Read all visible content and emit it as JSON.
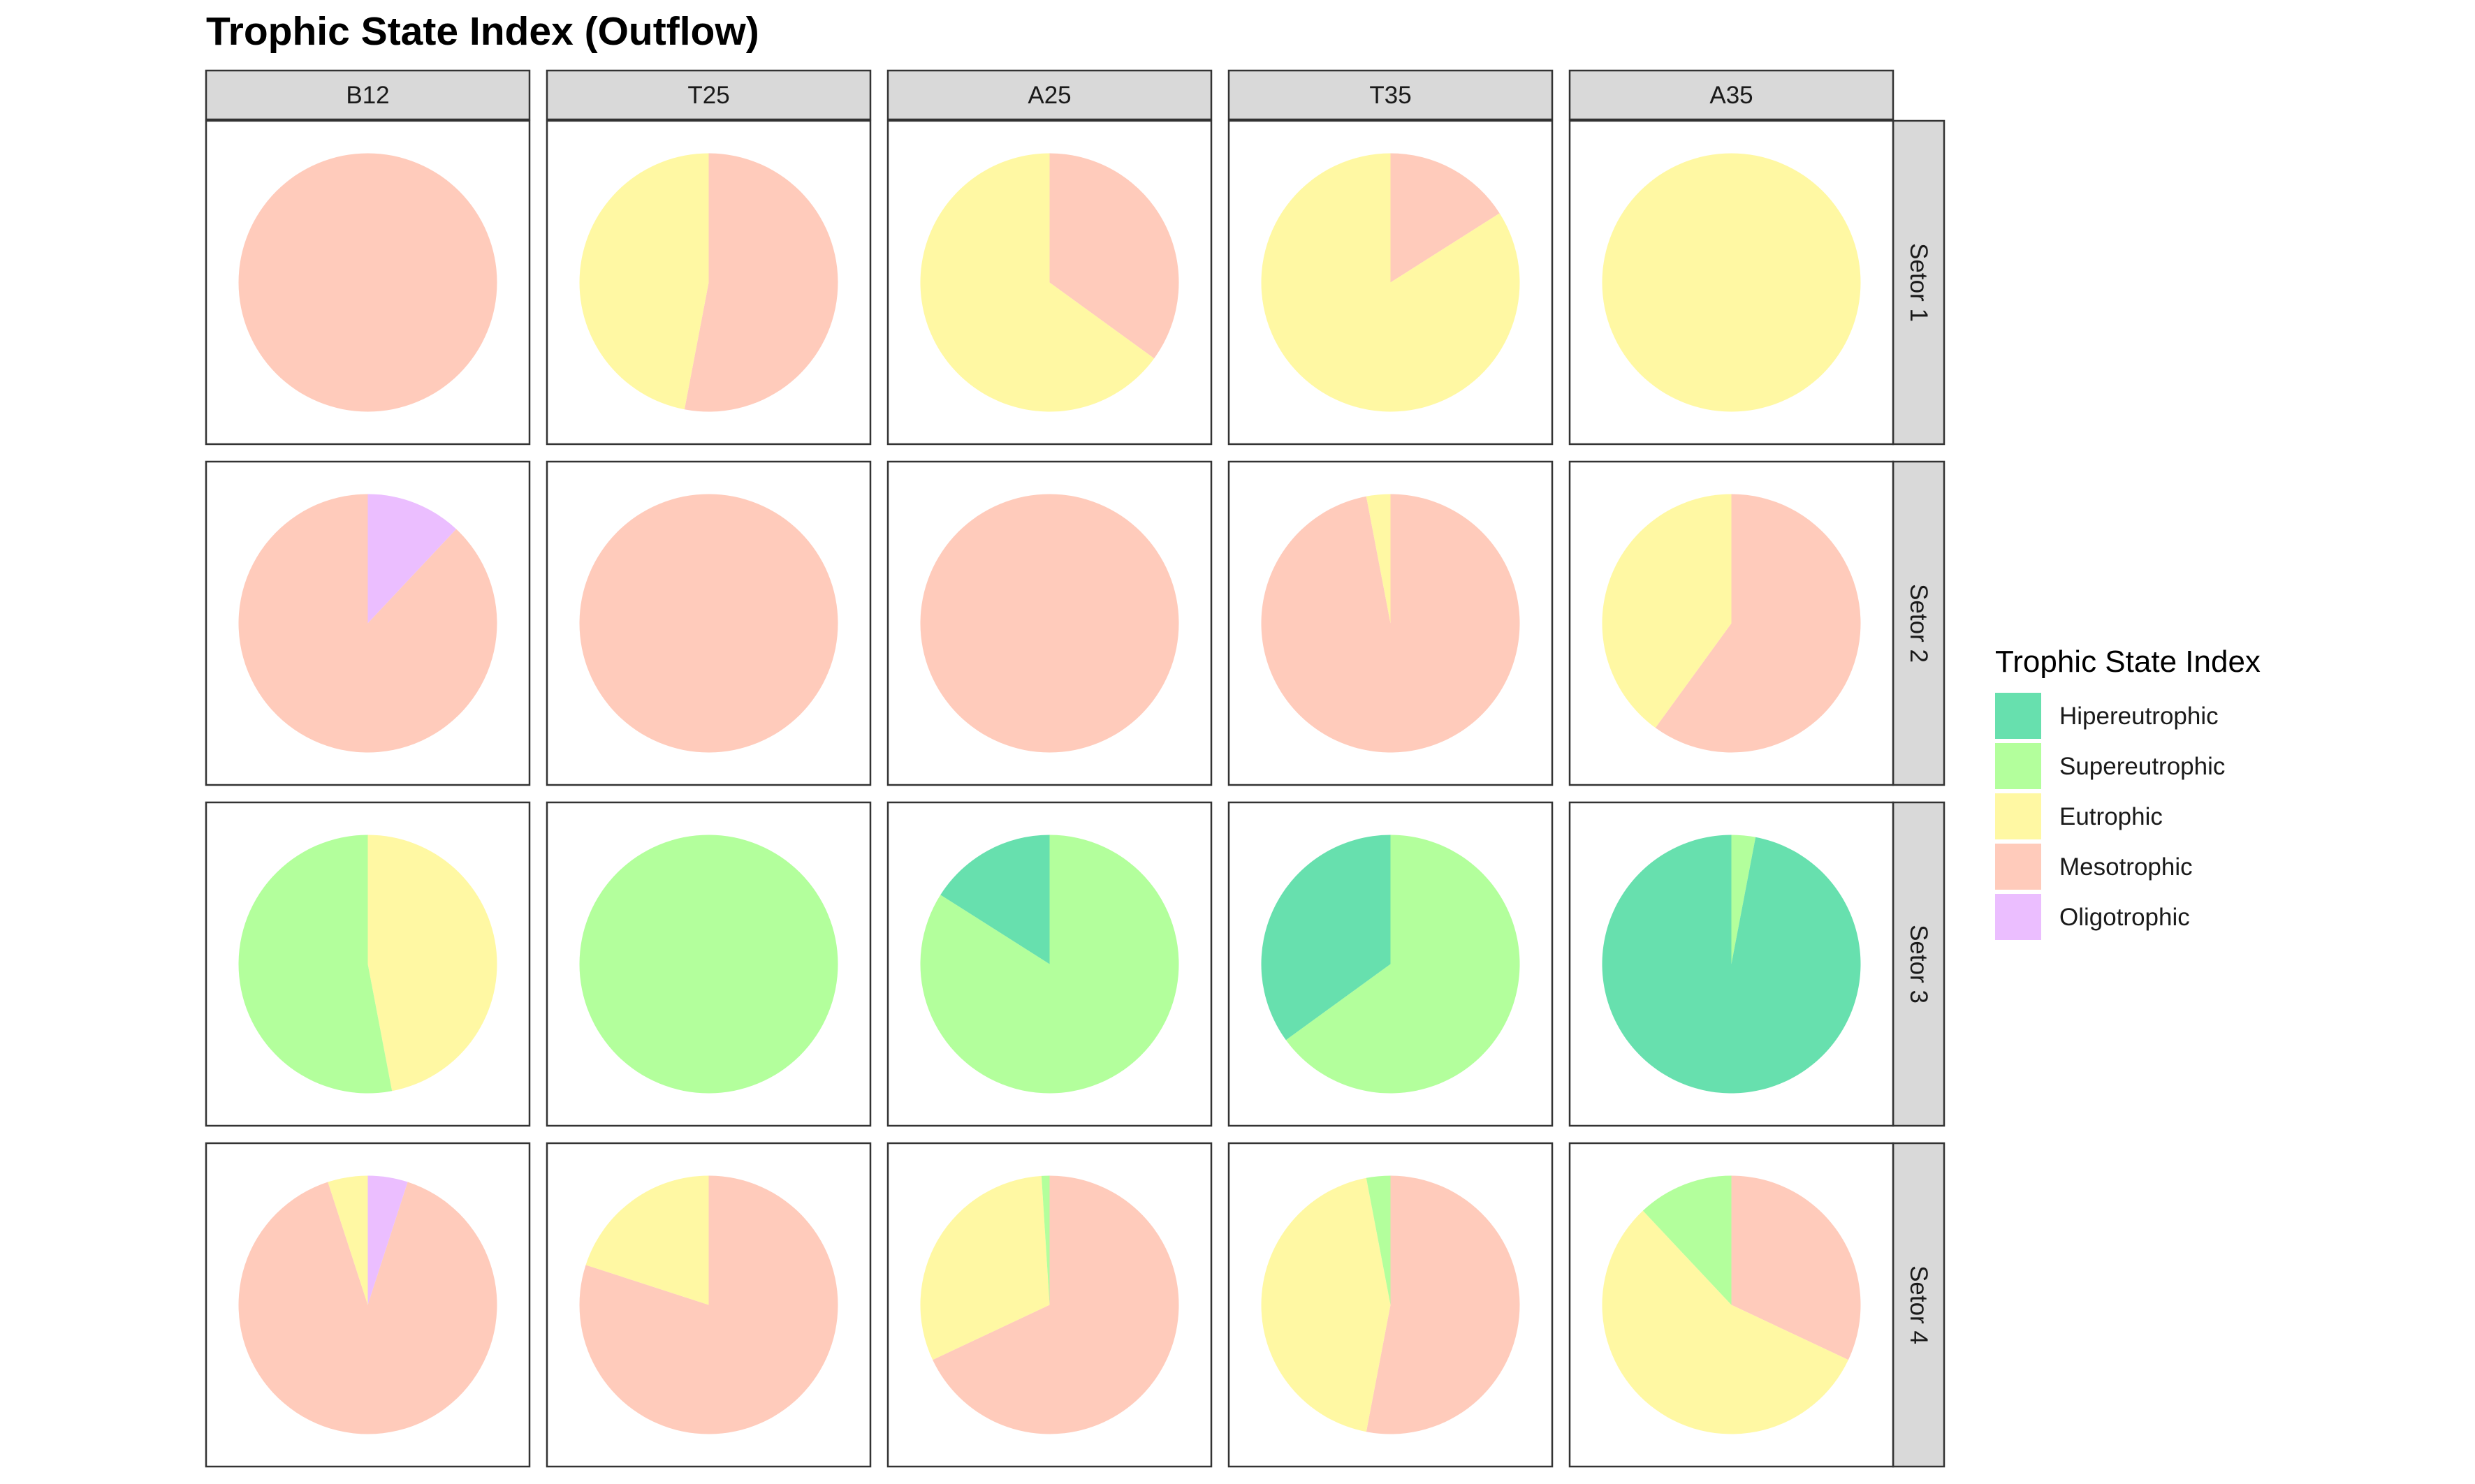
{
  "chart_data": {
    "type": "pie",
    "title": "Trophic State Index (Outflow)",
    "column_facets": [
      "B12",
      "T25",
      "A25",
      "T35",
      "A35"
    ],
    "row_facets": [
      "Setor 1",
      "Setor 2",
      "Setor 3",
      "Setor 4"
    ],
    "legend": {
      "title": "Trophic State Index",
      "position": "right",
      "items": [
        {
          "name": "Hipereutrophic",
          "color": "#67E0AE"
        },
        {
          "name": "Supereutrophic",
          "color": "#B3FF9C"
        },
        {
          "name": "Eutrophic",
          "color": "#FFF8A3"
        },
        {
          "name": "Mesotrophic",
          "color": "#FFCBBB"
        },
        {
          "name": "Oligotrophic",
          "color": "#EBBEFF"
        }
      ]
    },
    "panels": [
      {
        "row": "Setor 1",
        "col": "B12",
        "slices": [
          {
            "category": "Mesotrophic",
            "value": 100
          }
        ]
      },
      {
        "row": "Setor 1",
        "col": "T25",
        "slices": [
          {
            "category": "Mesotrophic",
            "value": 53
          },
          {
            "category": "Eutrophic",
            "value": 47
          }
        ]
      },
      {
        "row": "Setor 1",
        "col": "A25",
        "slices": [
          {
            "category": "Mesotrophic",
            "value": 35
          },
          {
            "category": "Eutrophic",
            "value": 65
          }
        ]
      },
      {
        "row": "Setor 1",
        "col": "T35",
        "slices": [
          {
            "category": "Mesotrophic",
            "value": 16
          },
          {
            "category": "Eutrophic",
            "value": 84
          }
        ]
      },
      {
        "row": "Setor 1",
        "col": "A35",
        "slices": [
          {
            "category": "Eutrophic",
            "value": 100
          }
        ]
      },
      {
        "row": "Setor 2",
        "col": "B12",
        "slices": [
          {
            "category": "Oligotrophic",
            "value": 12
          },
          {
            "category": "Mesotrophic",
            "value": 88
          }
        ]
      },
      {
        "row": "Setor 2",
        "col": "T25",
        "slices": [
          {
            "category": "Mesotrophic",
            "value": 100
          }
        ]
      },
      {
        "row": "Setor 2",
        "col": "A25",
        "slices": [
          {
            "category": "Mesotrophic",
            "value": 100
          }
        ]
      },
      {
        "row": "Setor 2",
        "col": "T35",
        "slices": [
          {
            "category": "Mesotrophic",
            "value": 97
          },
          {
            "category": "Eutrophic",
            "value": 3
          }
        ]
      },
      {
        "row": "Setor 2",
        "col": "A35",
        "slices": [
          {
            "category": "Mesotrophic",
            "value": 60
          },
          {
            "category": "Eutrophic",
            "value": 40
          }
        ]
      },
      {
        "row": "Setor 3",
        "col": "B12",
        "slices": [
          {
            "category": "Eutrophic",
            "value": 47
          },
          {
            "category": "Supereutrophic",
            "value": 53
          }
        ]
      },
      {
        "row": "Setor 3",
        "col": "T25",
        "slices": [
          {
            "category": "Supereutrophic",
            "value": 100
          }
        ]
      },
      {
        "row": "Setor 3",
        "col": "A25",
        "slices": [
          {
            "category": "Supereutrophic",
            "value": 84
          },
          {
            "category": "Hipereutrophic",
            "value": 16
          }
        ]
      },
      {
        "row": "Setor 3",
        "col": "T35",
        "slices": [
          {
            "category": "Supereutrophic",
            "value": 65
          },
          {
            "category": "Hipereutrophic",
            "value": 35
          }
        ]
      },
      {
        "row": "Setor 3",
        "col": "A35",
        "slices": [
          {
            "category": "Supereutrophic",
            "value": 3
          },
          {
            "category": "Hipereutrophic",
            "value": 97
          }
        ]
      },
      {
        "row": "Setor 4",
        "col": "B12",
        "slices": [
          {
            "category": "Oligotrophic",
            "value": 5
          },
          {
            "category": "Mesotrophic",
            "value": 90
          },
          {
            "category": "Eutrophic",
            "value": 5
          }
        ]
      },
      {
        "row": "Setor 4",
        "col": "T25",
        "slices": [
          {
            "category": "Mesotrophic",
            "value": 80
          },
          {
            "category": "Eutrophic",
            "value": 20
          }
        ]
      },
      {
        "row": "Setor 4",
        "col": "A25",
        "slices": [
          {
            "category": "Mesotrophic",
            "value": 68
          },
          {
            "category": "Eutrophic",
            "value": 31
          },
          {
            "category": "Supereutrophic",
            "value": 1
          }
        ]
      },
      {
        "row": "Setor 4",
        "col": "T35",
        "slices": [
          {
            "category": "Mesotrophic",
            "value": 53
          },
          {
            "category": "Eutrophic",
            "value": 44
          },
          {
            "category": "Supereutrophic",
            "value": 3
          }
        ]
      },
      {
        "row": "Setor 4",
        "col": "A35",
        "slices": [
          {
            "category": "Mesotrophic",
            "value": 32
          },
          {
            "category": "Eutrophic",
            "value": 56
          },
          {
            "category": "Supereutrophic",
            "value": 12
          }
        ]
      }
    ]
  }
}
